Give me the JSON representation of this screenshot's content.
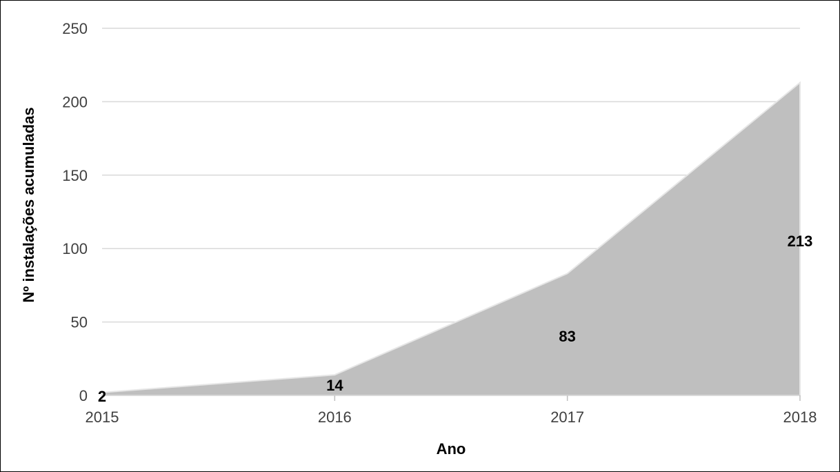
{
  "chart_data": {
    "type": "area",
    "title": "",
    "xlabel": "Ano",
    "ylabel": "Nº instalações acumuladas",
    "x": [
      "2015",
      "2016",
      "2017",
      "2018"
    ],
    "series": [
      {
        "values": [
          2,
          14,
          83,
          213
        ],
        "color": "#bfbfbf"
      }
    ],
    "data_labels": [
      "2",
      "14",
      "83",
      "213"
    ],
    "ylim": [
      0,
      250
    ],
    "yticks": [
      "0",
      "50",
      "100",
      "150",
      "200",
      "250"
    ],
    "grid": true,
    "legend": "none"
  }
}
